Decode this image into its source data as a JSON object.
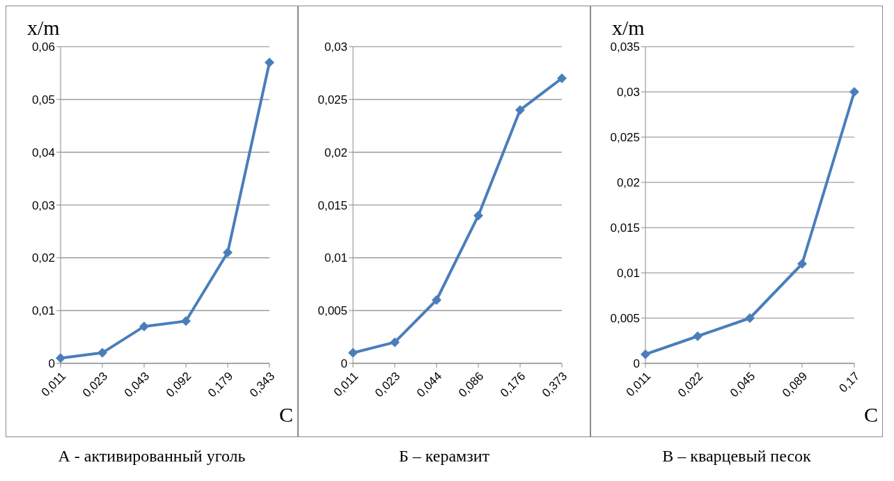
{
  "chart_data": [
    {
      "type": "line",
      "ylabel": "x/m",
      "xlabel": "С",
      "annotations": [
        "А - активированный уголь"
      ],
      "categories": [
        "0,011",
        "0,023",
        "0,043",
        "0,092",
        "0,179",
        "0,343"
      ],
      "series": [
        {
          "color": "#4a7ebb",
          "values": [
            0.001,
            0.002,
            0.007,
            0.008,
            0.021,
            0.057
          ]
        }
      ],
      "ylim": [
        0,
        0.06
      ],
      "yticks": [
        {
          "value": 0,
          "label": "0"
        },
        {
          "value": 0.01,
          "label": "0,01"
        },
        {
          "value": 0.02,
          "label": "0,02"
        },
        {
          "value": 0.03,
          "label": "0,03"
        },
        {
          "value": 0.04,
          "label": "0,04"
        },
        {
          "value": 0.05,
          "label": "0,05"
        },
        {
          "value": 0.06,
          "label": "0,06"
        }
      ],
      "grid": "y",
      "marker": "diamond",
      "legend": false
    },
    {
      "type": "line",
      "annotations": [
        "Б – керамзит"
      ],
      "categories": [
        "0,011",
        "0,023",
        "0,044",
        "0,086",
        "0,176",
        "0,373"
      ],
      "series": [
        {
          "color": "#4a7ebb",
          "values": [
            0.001,
            0.002,
            0.006,
            0.014,
            0.024,
            0.027
          ]
        }
      ],
      "ylim": [
        0,
        0.03
      ],
      "yticks": [
        {
          "value": 0,
          "label": "0"
        },
        {
          "value": 0.005,
          "label": "0,005"
        },
        {
          "value": 0.01,
          "label": "0,01"
        },
        {
          "value": 0.015,
          "label": "0,015"
        },
        {
          "value": 0.02,
          "label": "0,02"
        },
        {
          "value": 0.025,
          "label": "0,025"
        },
        {
          "value": 0.03,
          "label": "0,03"
        }
      ],
      "grid": "y",
      "marker": "diamond",
      "legend": false
    },
    {
      "type": "line",
      "ylabel": "x/m",
      "xlabel": "С",
      "annotations": [
        "В – кварцевый песок"
      ],
      "categories": [
        "0,011",
        "0,022",
        "0,045",
        "0,089",
        "0,17"
      ],
      "series": [
        {
          "color": "#4a7ebb",
          "values": [
            0.001,
            0.003,
            0.005,
            0.011,
            0.03
          ]
        }
      ],
      "ylim": [
        0,
        0.035
      ],
      "yticks": [
        {
          "value": 0,
          "label": "0"
        },
        {
          "value": 0.005,
          "label": "0,005"
        },
        {
          "value": 0.01,
          "label": "0,01"
        },
        {
          "value": 0.015,
          "label": "0,015"
        },
        {
          "value": 0.02,
          "label": "0,02"
        },
        {
          "value": 0.025,
          "label": "0,025"
        },
        {
          "value": 0.03,
          "label": "0,03"
        },
        {
          "value": 0.035,
          "label": "0,035"
        }
      ],
      "grid": "y",
      "marker": "diamond",
      "legend": false
    }
  ]
}
